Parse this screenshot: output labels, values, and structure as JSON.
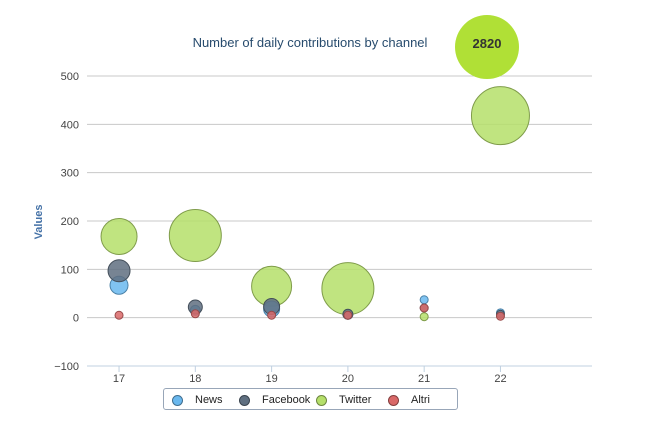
{
  "chart_data": {
    "type": "scatter",
    "title": "Number of daily contributions by channel",
    "xlabel": "",
    "ylabel": "Values",
    "ylim": [
      -100,
      500
    ],
    "yticks": [
      -100,
      0,
      100,
      200,
      300,
      400,
      500
    ],
    "ytick_labels": [
      "−100",
      "0",
      "100",
      "200",
      "300",
      "400",
      "500"
    ],
    "x": [
      17,
      18,
      19,
      20,
      21,
      22
    ],
    "xtick_labels": [
      "17",
      "18",
      "19",
      "20",
      "21",
      "22"
    ],
    "grid": "horizontal",
    "legend": "bottom",
    "series": [
      {
        "name": "News",
        "color": "#6ab8ee",
        "points": [
          {
            "x": 17,
            "y": 67,
            "z": 9
          },
          {
            "x": 18,
            "y": 15,
            "z": 5
          },
          {
            "x": 19,
            "y": 18,
            "z": 8
          },
          {
            "x": 20,
            "y": 5,
            "z": 4
          },
          {
            "x": 21,
            "y": 37,
            "z": 4
          },
          {
            "x": 22,
            "y": 10,
            "z": 4
          }
        ]
      },
      {
        "name": "Facebook",
        "color": "#5f6f80",
        "points": [
          {
            "x": 17,
            "y": 97,
            "z": 11
          },
          {
            "x": 18,
            "y": 22,
            "z": 7
          },
          {
            "x": 19,
            "y": 23,
            "z": 8
          },
          {
            "x": 20,
            "y": 7,
            "z": 5
          },
          {
            "x": 21,
            "y": 20,
            "z": 4
          },
          {
            "x": 22,
            "y": 7,
            "z": 4
          }
        ]
      },
      {
        "name": "Twitter",
        "color": "#b5df6a",
        "points": [
          {
            "x": 17,
            "y": 168,
            "z": 18
          },
          {
            "x": 18,
            "y": 170,
            "z": 26
          },
          {
            "x": 19,
            "y": 65,
            "z": 20
          },
          {
            "x": 20,
            "y": 60,
            "z": 26
          },
          {
            "x": 21,
            "y": 2,
            "z": 4
          },
          {
            "x": 22,
            "y": 418,
            "z": 29
          }
        ]
      },
      {
        "name": "Altri",
        "color": "#d96868",
        "points": [
          {
            "x": 17,
            "y": 5,
            "z": 4
          },
          {
            "x": 18,
            "y": 8,
            "z": 4
          },
          {
            "x": 19,
            "y": 5,
            "z": 4
          },
          {
            "x": 20,
            "y": 5,
            "z": 4
          },
          {
            "x": 21,
            "y": 20,
            "z": 4
          },
          {
            "x": 22,
            "y": 3,
            "z": 4
          }
        ]
      }
    ],
    "annotation": {
      "label": "2820",
      "color": "#b0e036"
    }
  }
}
